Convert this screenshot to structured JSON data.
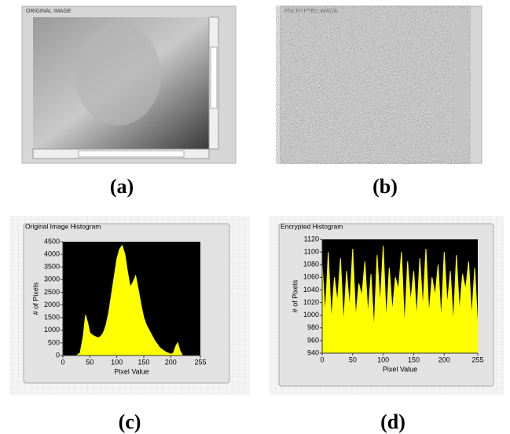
{
  "images": [
    {
      "title": "ORIGINAL IMAGE",
      "caption": "(a)"
    },
    {
      "title": "ENCRYPTED IMAGE",
      "caption": "(b)"
    }
  ],
  "chart_data": [
    {
      "type": "area",
      "title": "Original Image Histogram",
      "xlabel": "Pixel Value",
      "ylabel": "# of Pixels",
      "caption": "(c)",
      "color": "#ffff00",
      "background": "#000000",
      "x": [
        0,
        25,
        32,
        38,
        42,
        46,
        50,
        55,
        60,
        65,
        70,
        75,
        80,
        85,
        90,
        95,
        100,
        105,
        110,
        115,
        120,
        125,
        130,
        135,
        140,
        145,
        150,
        155,
        160,
        165,
        170,
        180,
        190,
        200,
        205,
        210,
        213,
        217,
        222,
        255
      ],
      "values": [
        0,
        0,
        100,
        800,
        1600,
        1300,
        900,
        800,
        750,
        700,
        750,
        900,
        1200,
        1700,
        2400,
        3100,
        3800,
        4200,
        4350,
        4000,
        3300,
        2700,
        2900,
        3150,
        2600,
        2000,
        1500,
        1200,
        1000,
        800,
        600,
        300,
        150,
        50,
        100,
        400,
        500,
        200,
        0,
        0
      ],
      "xlim": [
        0,
        255
      ],
      "xticks": [
        0,
        50,
        100,
        150,
        200,
        255
      ],
      "ylim": [
        0,
        4500
      ],
      "yticks": [
        0,
        500,
        1000,
        1500,
        2000,
        2500,
        3000,
        3500,
        4000,
        4500
      ]
    },
    {
      "type": "area",
      "title": "Encrypted Histogram",
      "xlabel": "Pixel Value",
      "ylabel": "# of Pixels",
      "caption": "(d)",
      "color": "#ffff00",
      "background": "#000000",
      "x": [
        0,
        5,
        10,
        15,
        20,
        25,
        30,
        35,
        40,
        45,
        50,
        55,
        60,
        65,
        70,
        75,
        80,
        85,
        90,
        95,
        100,
        105,
        110,
        115,
        120,
        125,
        130,
        135,
        140,
        145,
        150,
        155,
        160,
        165,
        170,
        175,
        180,
        185,
        190,
        195,
        200,
        205,
        210,
        215,
        220,
        225,
        230,
        235,
        240,
        245,
        250,
        255
      ],
      "values": [
        1080,
        1000,
        1100,
        990,
        1060,
        1020,
        1090,
        985,
        1070,
        1010,
        1105,
        995,
        1050,
        1030,
        1085,
        1000,
        1065,
        975,
        1095,
        1015,
        1110,
        990,
        1075,
        1005,
        1060,
        1040,
        1100,
        980,
        1085,
        1020,
        1070,
        995,
        1090,
        1010,
        1105,
        1000,
        1060,
        1030,
        1080,
        990,
        1100,
        1015,
        1070,
        985,
        1095,
        1005,
        1065,
        1040,
        1085,
        995,
        1075,
        980
      ],
      "xlim": [
        0,
        255
      ],
      "xticks": [
        0,
        50,
        100,
        150,
        200,
        255
      ],
      "ylim": [
        940,
        1120
      ],
      "yticks": [
        940,
        960,
        980,
        1000,
        1020,
        1040,
        1060,
        1080,
        1100,
        1120
      ]
    }
  ]
}
